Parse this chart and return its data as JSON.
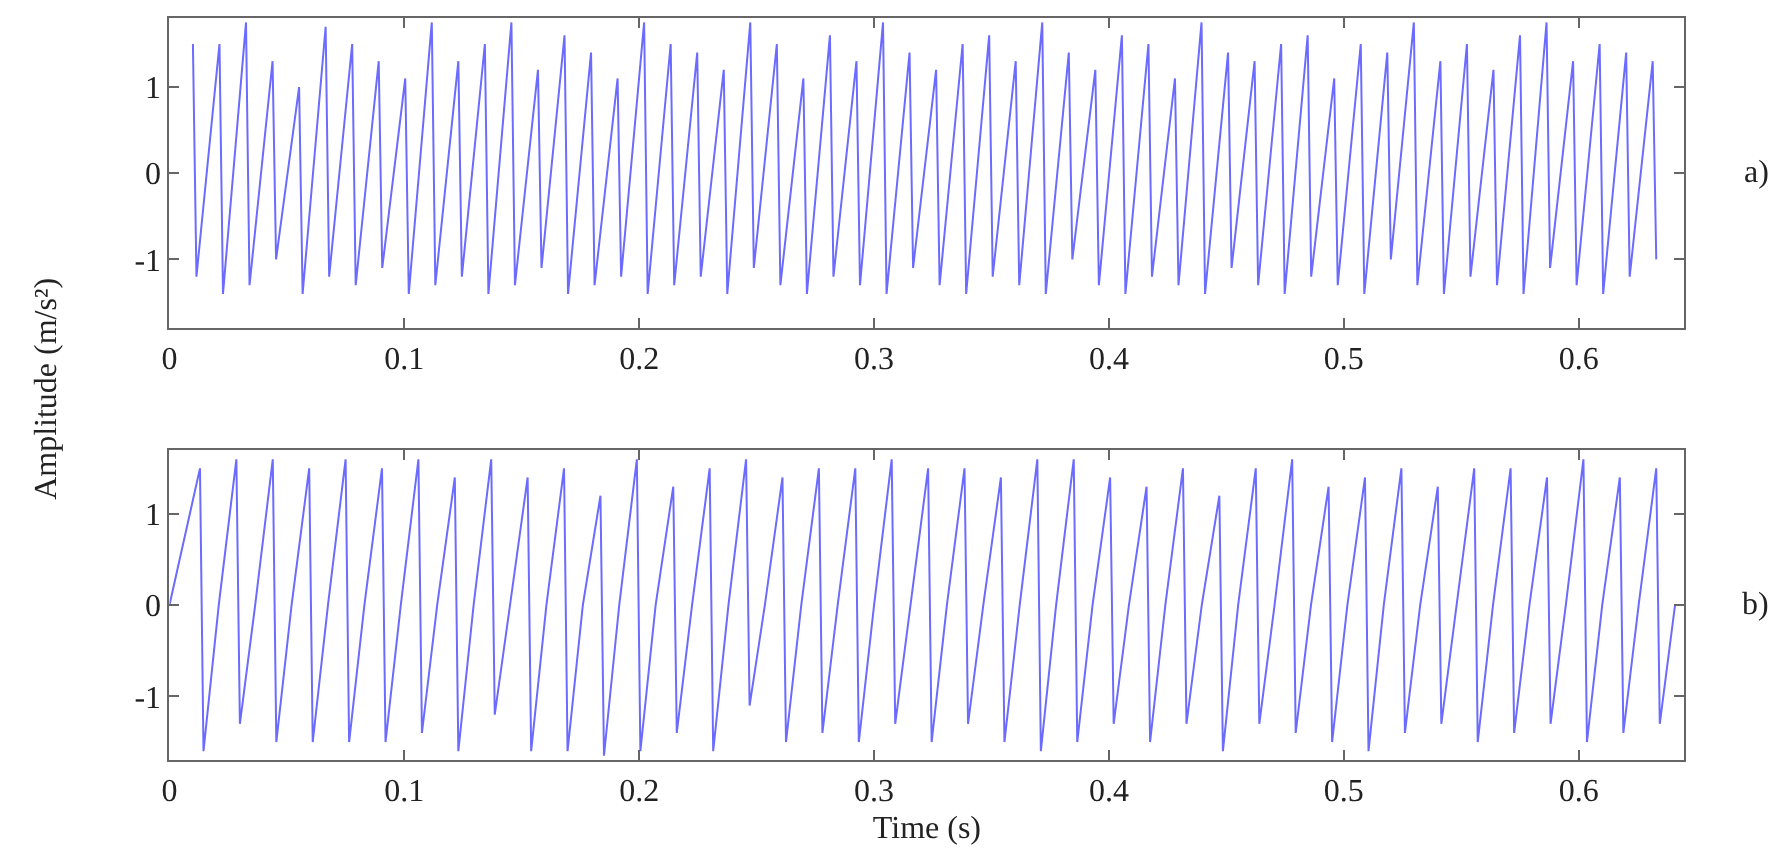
{
  "chart_data": [
    {
      "type": "line",
      "ylabel": "Amplitude (m/s²)",
      "annotations": [
        "a)"
      ],
      "xlim": [
        0,
        0.645
      ],
      "ylim": [
        -1.8,
        1.8
      ],
      "xticks": [
        0,
        0.1,
        0.2,
        0.3,
        0.4,
        0.5,
        0.6
      ],
      "yticks": [
        -1,
        0,
        1
      ],
      "x": [
        0.01,
        0.0115,
        0.0213,
        0.0228,
        0.0326,
        0.0341,
        0.0439,
        0.0454,
        0.0552,
        0.0567,
        0.0665,
        0.068,
        0.0778,
        0.0793,
        0.0891,
        0.0906,
        0.1004,
        0.1019,
        0.1117,
        0.1132,
        0.123,
        0.1245,
        0.1343,
        0.1358,
        0.1456,
        0.1471,
        0.1569,
        0.1584,
        0.1682,
        0.1697,
        0.1795,
        0.181,
        0.1908,
        0.1923,
        0.2021,
        0.2036,
        0.2134,
        0.2149,
        0.2247,
        0.2262,
        0.236,
        0.2375,
        0.2473,
        0.2488,
        0.2586,
        0.2601,
        0.2699,
        0.2714,
        0.2812,
        0.2827,
        0.2925,
        0.294,
        0.3038,
        0.3053,
        0.3151,
        0.3166,
        0.3264,
        0.3279,
        0.3377,
        0.3392,
        0.349,
        0.3505,
        0.3603,
        0.3618,
        0.3716,
        0.3731,
        0.3829,
        0.3844,
        0.3942,
        0.3957,
        0.4055,
        0.407,
        0.4168,
        0.4183,
        0.4281,
        0.4296,
        0.4394,
        0.4409,
        0.4507,
        0.4522,
        0.462,
        0.4635,
        0.4733,
        0.4748,
        0.4846,
        0.4861,
        0.4959,
        0.4974,
        0.5072,
        0.5087,
        0.5185,
        0.52,
        0.5298,
        0.5313,
        0.5411,
        0.5426,
        0.5524,
        0.5539,
        0.5637,
        0.5652,
        0.575,
        0.5765,
        0.5863,
        0.5878,
        0.5976,
        0.5991,
        0.6089,
        0.6104,
        0.6202,
        0.6217,
        0.6315,
        0.633
      ],
      "series": [
        {
          "color": "#6b6bff",
          "values": [
            1.5,
            -1.2,
            1.5,
            -1.4,
            1.75,
            -1.3,
            1.3,
            -1.0,
            1.0,
            -1.4,
            1.7,
            -1.2,
            1.5,
            -1.3,
            1.3,
            -1.1,
            1.1,
            -1.4,
            1.75,
            -1.3,
            1.3,
            -1.2,
            1.5,
            -1.4,
            1.75,
            -1.3,
            1.2,
            -1.1,
            1.6,
            -1.4,
            1.4,
            -1.3,
            1.1,
            -1.2,
            1.75,
            -1.4,
            1.5,
            -1.3,
            1.4,
            -1.2,
            1.2,
            -1.4,
            1.75,
            -1.1,
            1.5,
            -1.3,
            1.1,
            -1.4,
            1.6,
            -1.2,
            1.3,
            -1.3,
            1.75,
            -1.4,
            1.4,
            -1.1,
            1.2,
            -1.3,
            1.5,
            -1.4,
            1.6,
            -1.2,
            1.3,
            -1.3,
            1.75,
            -1.4,
            1.4,
            -1.0,
            1.2,
            -1.3,
            1.6,
            -1.4,
            1.5,
            -1.2,
            1.1,
            -1.3,
            1.75,
            -1.4,
            1.4,
            -1.1,
            1.3,
            -1.3,
            1.5,
            -1.4,
            1.6,
            -1.2,
            1.1,
            -1.3,
            1.5,
            -1.4,
            1.4,
            -1.0,
            1.75,
            -1.3,
            1.3,
            -1.4,
            1.5,
            -1.2,
            1.2,
            -1.3,
            1.6,
            -1.4,
            1.75,
            -1.1,
            1.3,
            -1.3,
            1.5,
            -1.4,
            1.4,
            -1.2,
            1.3,
            -1.0
          ]
        }
      ]
    },
    {
      "type": "line",
      "xlabel": "Time (s)",
      "annotations": [
        "b)"
      ],
      "xlim": [
        0,
        0.645
      ],
      "ylim": [
        -1.7,
        1.7
      ],
      "xticks": [
        0,
        0.1,
        0.2,
        0.3,
        0.4,
        0.5,
        0.6
      ],
      "yticks": [
        -1,
        0,
        1
      ],
      "x": [
        0,
        0.013,
        0.0145,
        0.021,
        0.0285,
        0.03,
        0.0365,
        0.044,
        0.0455,
        0.052,
        0.0595,
        0.061,
        0.0675,
        0.075,
        0.0765,
        0.083,
        0.0905,
        0.092,
        0.0985,
        0.106,
        0.1075,
        0.114,
        0.1215,
        0.123,
        0.1295,
        0.137,
        0.1385,
        0.145,
        0.1525,
        0.154,
        0.1605,
        0.168,
        0.1695,
        0.176,
        0.1835,
        0.185,
        0.1915,
        0.199,
        0.2005,
        0.207,
        0.2145,
        0.216,
        0.2225,
        0.23,
        0.2315,
        0.238,
        0.2455,
        0.247,
        0.2535,
        0.261,
        0.2625,
        0.269,
        0.2765,
        0.278,
        0.2845,
        0.292,
        0.2935,
        0.3,
        0.3075,
        0.309,
        0.3155,
        0.323,
        0.3245,
        0.331,
        0.3385,
        0.34,
        0.3465,
        0.354,
        0.3555,
        0.362,
        0.3695,
        0.371,
        0.3775,
        0.385,
        0.3865,
        0.393,
        0.4005,
        0.402,
        0.4085,
        0.416,
        0.4175,
        0.424,
        0.4315,
        0.433,
        0.4395,
        0.447,
        0.4485,
        0.455,
        0.4625,
        0.464,
        0.4705,
        0.478,
        0.4795,
        0.486,
        0.4935,
        0.495,
        0.5015,
        0.509,
        0.5105,
        0.517,
        0.5245,
        0.526,
        0.5325,
        0.54,
        0.5415,
        0.548,
        0.5555,
        0.557,
        0.5635,
        0.571,
        0.5725,
        0.579,
        0.5865,
        0.588,
        0.5945,
        0.602,
        0.6035,
        0.61,
        0.6175,
        0.619,
        0.6255,
        0.633,
        0.6345,
        0.641
      ],
      "series": [
        {
          "color": "#6b6bff",
          "values": [
            0,
            1.5,
            -1.6,
            0,
            1.6,
            -1.3,
            0,
            1.6,
            -1.5,
            0,
            1.5,
            -1.5,
            0,
            1.6,
            -1.5,
            0,
            1.5,
            -1.5,
            0,
            1.6,
            -1.4,
            0,
            1.4,
            -1.6,
            0,
            1.6,
            -1.2,
            0,
            1.4,
            -1.6,
            0,
            1.5,
            -1.6,
            0,
            1.2,
            -1.65,
            0,
            1.6,
            -1.6,
            0,
            1.3,
            -1.4,
            0,
            1.5,
            -1.6,
            0,
            1.6,
            -1.1,
            0,
            1.4,
            -1.5,
            0,
            1.5,
            -1.4,
            0,
            1.5,
            -1.5,
            0,
            1.6,
            -1.3,
            0,
            1.5,
            -1.5,
            0,
            1.5,
            -1.3,
            0,
            1.4,
            -1.5,
            0,
            1.6,
            -1.6,
            0,
            1.6,
            -1.5,
            0,
            1.4,
            -1.3,
            0,
            1.3,
            -1.5,
            0,
            1.5,
            -1.3,
            0,
            1.2,
            -1.6,
            0,
            1.5,
            -1.3,
            0,
            1.6,
            -1.4,
            0,
            1.3,
            -1.5,
            0,
            1.4,
            -1.6,
            0,
            1.5,
            -1.4,
            0,
            1.3,
            -1.3,
            0,
            1.5,
            -1.5,
            0,
            1.5,
            -1.4,
            0,
            1.4,
            -1.3,
            0,
            1.6,
            -1.5,
            0,
            1.4,
            -1.4,
            0,
            1.5,
            -1.3,
            0
          ]
        }
      ]
    }
  ]
}
